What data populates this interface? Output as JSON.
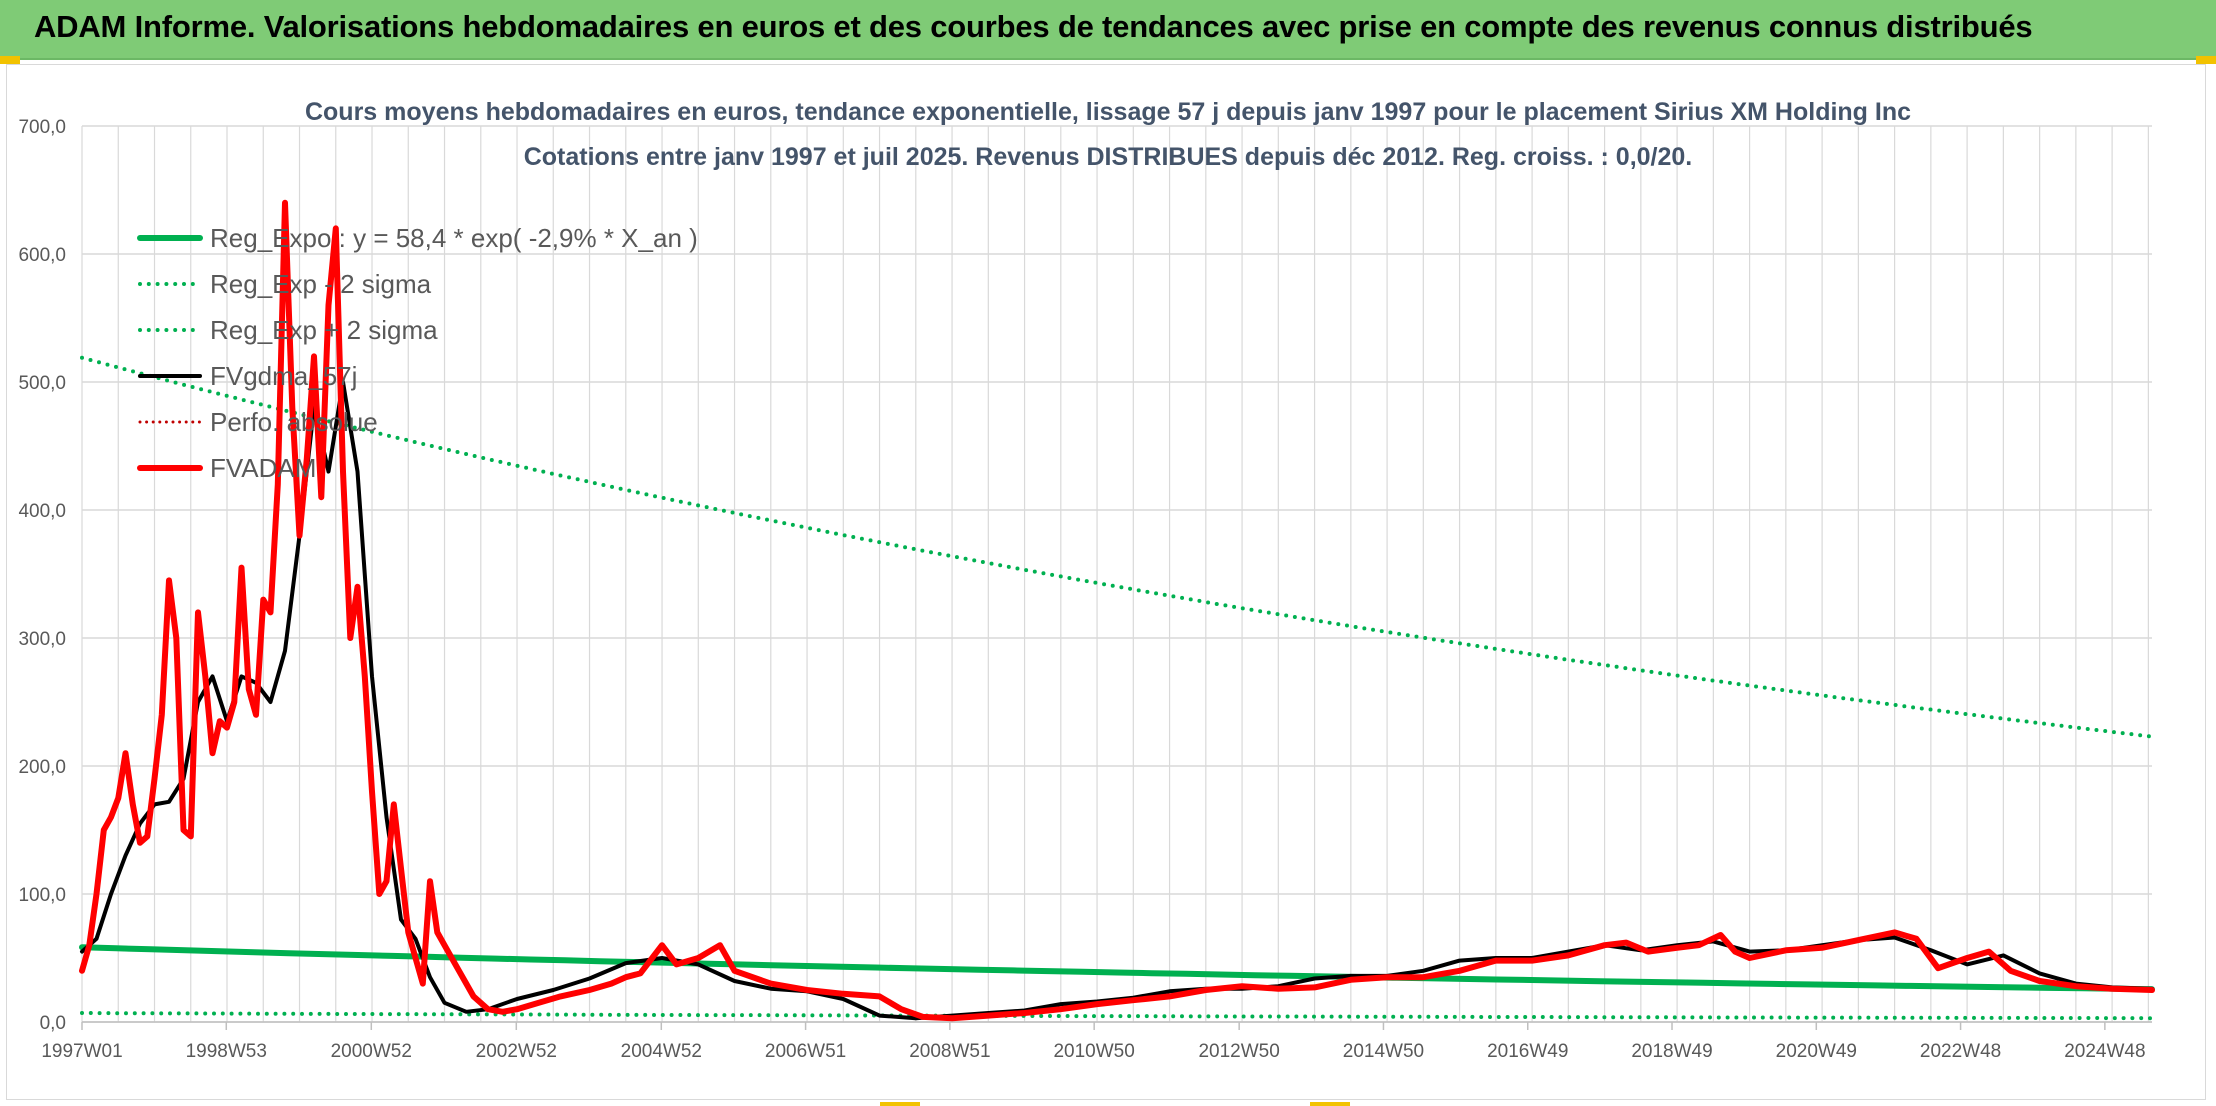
{
  "header": {
    "title": "ADAM Informe. Valorisations hebdomadaires en euros et des courbes de tendances avec prise en compte des revenus connus distribués"
  },
  "colors": {
    "banner": "#7fcb76",
    "green": "#00b050",
    "black": "#000000",
    "red": "#ff0000",
    "grid": "#d9d9d9",
    "title": "#44546a"
  },
  "chart_data": {
    "type": "line",
    "title": "Cours moyens hebdomadaires en euros, tendance exponentielle, lissage 57 j depuis janv 1997 pour le placement Sirius XM Holding Inc",
    "subtitle": "Cotations entre janv 1997 et juil 2025. Revenus DISTRIBUES depuis déc 2012. Reg. croiss. : 0,0/20.",
    "xlabel": "",
    "ylabel": "",
    "ylim": [
      0,
      700
    ],
    "yticks": [
      "0,0",
      "100,0",
      "200,0",
      "300,0",
      "400,0",
      "500,0",
      "600,0",
      "700,0"
    ],
    "xlim": [
      1997.0,
      2025.55
    ],
    "xticks": [
      {
        "label": "1997W01",
        "x": 1997.0
      },
      {
        "label": "1998W53",
        "x": 1998.99
      },
      {
        "label": "2000W52",
        "x": 2000.99
      },
      {
        "label": "2002W52",
        "x": 2002.99
      },
      {
        "label": "2004W52",
        "x": 2004.99
      },
      {
        "label": "2006W51",
        "x": 2006.98
      },
      {
        "label": "2008W51",
        "x": 2008.97
      },
      {
        "label": "2010W50",
        "x": 2010.96
      },
      {
        "label": "2012W50",
        "x": 2012.96
      },
      {
        "label": "2014W50",
        "x": 2014.95
      },
      {
        "label": "2016W49",
        "x": 2016.94
      },
      {
        "label": "2018W49",
        "x": 2018.93
      },
      {
        "label": "2020W49",
        "x": 2020.92
      },
      {
        "label": "2022W48",
        "x": 2022.91
      },
      {
        "label": "2024W48",
        "x": 2024.9
      }
    ],
    "grid": true,
    "legend_position": "top-left",
    "series": [
      {
        "name": "Reg_Expo : y = 58,4 * exp( -2,9% *  X_an )",
        "color": "#00b050",
        "style": "solid",
        "width": 6,
        "x": [
          1997.0,
          2025.55
        ],
        "y": [
          58.4,
          25.6
        ]
      },
      {
        "name": "Reg_Exp - 2 sigma",
        "color": "#00b050",
        "style": "dotted",
        "width": 4,
        "x": [
          1997.0,
          2025.55
        ],
        "y": [
          7.0,
          3.0
        ]
      },
      {
        "name": "Reg_Exp + 2 sigma",
        "color": "#00b050",
        "style": "dotted",
        "width": 4,
        "x": [
          1997.0,
          2025.55
        ],
        "y": [
          519.0,
          223.0
        ]
      },
      {
        "name": "FVgdma_57j",
        "color": "#000000",
        "style": "solid",
        "width": 4,
        "x": [
          1997.0,
          1997.2,
          1997.4,
          1997.6,
          1997.8,
          1998.0,
          1998.2,
          1998.4,
          1998.6,
          1998.8,
          1999.0,
          1999.2,
          1999.4,
          1999.6,
          1999.8,
          2000.0,
          2000.2,
          2000.4,
          2000.6,
          2000.8,
          2001.0,
          2001.2,
          2001.4,
          2001.6,
          2001.8,
          2002.0,
          2002.3,
          2002.6,
          2003.0,
          2003.5,
          2004.0,
          2004.5,
          2005.0,
          2005.5,
          2006.0,
          2006.5,
          2007.0,
          2007.5,
          2008.0,
          2008.5,
          2009.0,
          2009.5,
          2010.0,
          2010.5,
          2011.0,
          2011.5,
          2012.0,
          2012.5,
          2013.0,
          2013.5,
          2014.0,
          2014.5,
          2015.0,
          2015.5,
          2016.0,
          2016.5,
          2017.0,
          2017.5,
          2018.0,
          2018.5,
          2019.0,
          2019.5,
          2020.0,
          2020.5,
          2021.0,
          2021.5,
          2022.0,
          2022.5,
          2023.0,
          2023.5,
          2024.0,
          2024.5,
          2025.0,
          2025.55
        ],
        "y": [
          55,
          65,
          100,
          130,
          155,
          170,
          172,
          190,
          250,
          270,
          235,
          270,
          265,
          250,
          290,
          380,
          480,
          430,
          500,
          430,
          270,
          160,
          80,
          65,
          35,
          15,
          8,
          10,
          18,
          25,
          34,
          46,
          50,
          45,
          32,
          26,
          24,
          18,
          5,
          3,
          5,
          7,
          9,
          14,
          16,
          19,
          24,
          26,
          26,
          28,
          34,
          36,
          36,
          40,
          48,
          50,
          50,
          55,
          60,
          56,
          60,
          63,
          55,
          56,
          60,
          64,
          66,
          56,
          45,
          52,
          38,
          30,
          27,
          26
        ]
      },
      {
        "name": "Perfo. absolue",
        "color": "#c00000",
        "style": "dotted",
        "width": 3,
        "x": [],
        "y": []
      },
      {
        "name": "FVADAM",
        "color": "#ff0000",
        "style": "solid",
        "width": 6,
        "x": [
          1997.0,
          1997.1,
          1997.2,
          1997.3,
          1997.4,
          1997.5,
          1997.6,
          1997.7,
          1997.8,
          1997.9,
          1998.0,
          1998.1,
          1998.2,
          1998.3,
          1998.4,
          1998.5,
          1998.6,
          1998.7,
          1998.8,
          1998.9,
          1999.0,
          1999.1,
          1999.2,
          1999.3,
          1999.4,
          1999.5,
          1999.6,
          1999.7,
          1999.8,
          1999.9,
          2000.0,
          2000.1,
          2000.2,
          2000.3,
          2000.4,
          2000.5,
          2000.6,
          2000.7,
          2000.8,
          2000.9,
          2001.0,
          2001.1,
          2001.2,
          2001.3,
          2001.4,
          2001.5,
          2001.6,
          2001.7,
          2001.8,
          2001.9,
          2002.0,
          2002.2,
          2002.4,
          2002.6,
          2002.8,
          2003.0,
          2003.3,
          2003.6,
          2004.0,
          2004.3,
          2004.5,
          2004.7,
          2005.0,
          2005.2,
          2005.5,
          2005.8,
          2006.0,
          2006.5,
          2007.0,
          2007.5,
          2008.0,
          2008.3,
          2008.6,
          2009.0,
          2009.5,
          2010.0,
          2010.5,
          2011.0,
          2011.5,
          2012.0,
          2012.5,
          2013.0,
          2013.5,
          2014.0,
          2014.5,
          2015.0,
          2015.5,
          2016.0,
          2016.5,
          2017.0,
          2017.5,
          2018.0,
          2018.3,
          2018.6,
          2019.0,
          2019.3,
          2019.6,
          2019.8,
          2020.0,
          2020.5,
          2021.0,
          2021.5,
          2022.0,
          2022.3,
          2022.6,
          2023.0,
          2023.3,
          2023.6,
          2024.0,
          2024.5,
          2025.0,
          2025.55
        ],
        "y": [
          40,
          60,
          100,
          150,
          160,
          175,
          210,
          170,
          140,
          145,
          190,
          240,
          345,
          300,
          150,
          145,
          320,
          270,
          210,
          235,
          230,
          250,
          355,
          260,
          240,
          330,
          320,
          420,
          640,
          480,
          380,
          440,
          520,
          410,
          560,
          620,
          430,
          300,
          340,
          270,
          180,
          100,
          110,
          170,
          120,
          70,
          50,
          30,
          110,
          70,
          60,
          40,
          20,
          10,
          8,
          10,
          15,
          20,
          25,
          30,
          35,
          38,
          60,
          45,
          50,
          60,
          40,
          30,
          25,
          22,
          20,
          10,
          4,
          3,
          5,
          7,
          10,
          14,
          17,
          20,
          25,
          28,
          26,
          27,
          33,
          35,
          35,
          40,
          48,
          48,
          52,
          60,
          62,
          55,
          58,
          60,
          68,
          55,
          50,
          56,
          58,
          64,
          70,
          65,
          42,
          50,
          55,
          40,
          32,
          28,
          26,
          25
        ]
      }
    ]
  }
}
